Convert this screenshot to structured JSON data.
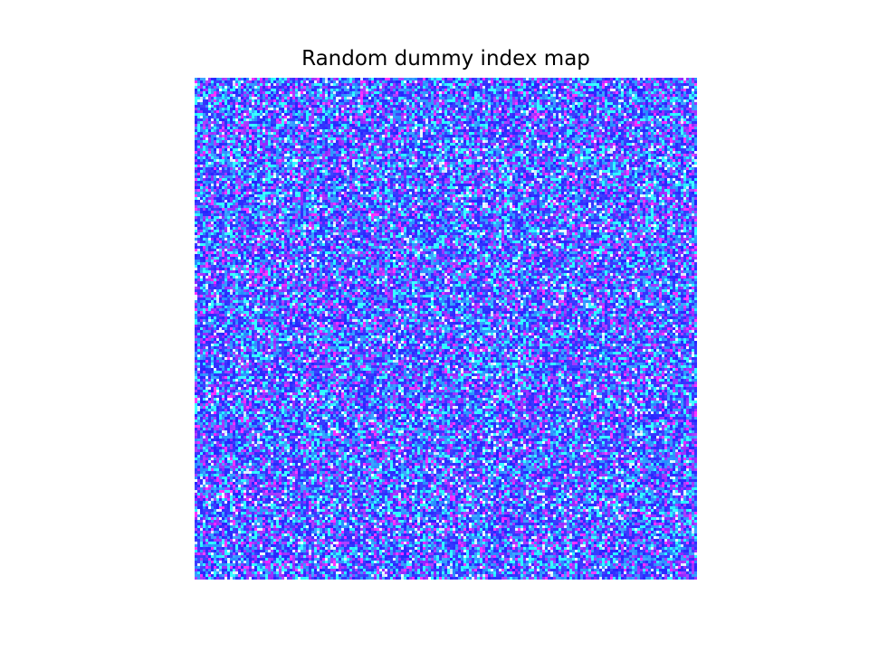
{
  "chart_data": {
    "type": "heatmap",
    "title": "Random dummy index map",
    "grid": false,
    "axes_visible": false,
    "colorbar": false,
    "grid_rows": 185,
    "grid_cols": 185,
    "value_distribution": "uniform-random",
    "palette": [
      "#ff33ff",
      "#a033ff",
      "#3333ff",
      "#3399ff",
      "#33ffff",
      "#e0f0ff"
    ],
    "palette_weights": [
      0.06,
      0.18,
      0.34,
      0.22,
      0.14,
      0.06
    ]
  }
}
